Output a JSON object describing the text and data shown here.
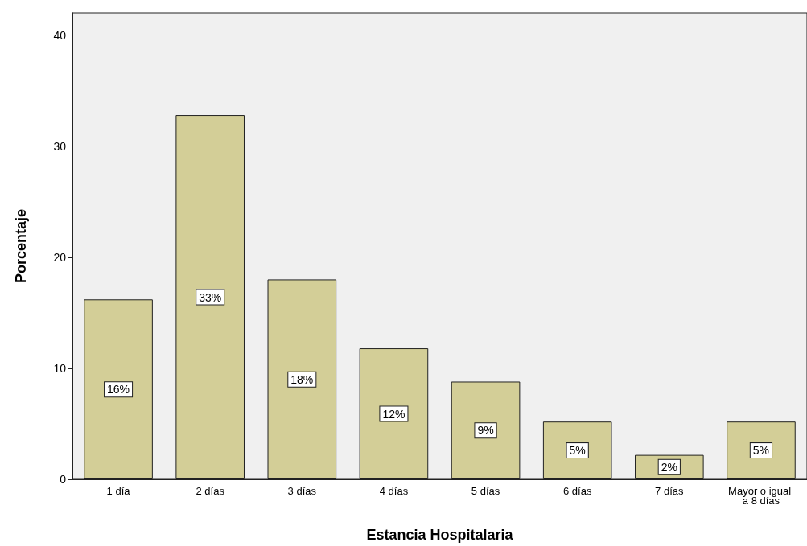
{
  "chart_data": {
    "type": "bar",
    "xlabel": "Estancia Hospitalaria",
    "ylabel": "Porcentaje",
    "categories": [
      "1 día",
      "2 días",
      "3 días",
      "4 días",
      "5 días",
      "6 días",
      "7 días",
      "Mayor o igual a 8 días"
    ],
    "values": [
      16.2,
      32.8,
      18.0,
      11.8,
      8.8,
      5.2,
      2.2,
      5.2
    ],
    "value_labels": [
      "16%",
      "33%",
      "18%",
      "12%",
      "9%",
      "5%",
      "2%",
      "5%"
    ],
    "color": "#d3ce97",
    "ylim": [
      0,
      42
    ],
    "yticks": [
      0,
      10,
      20,
      30,
      40
    ],
    "grid": false
  }
}
